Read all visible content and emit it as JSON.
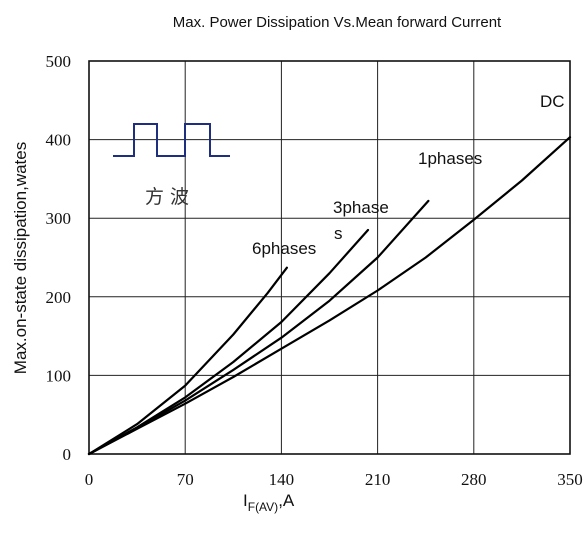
{
  "chart_data": {
    "type": "line",
    "title": "Max. Power Dissipation Vs.Mean forward Current",
    "ylabel": "Max.on-state dissipation,wates",
    "xlabel_main": "I",
    "xlabel_sub": "F(AV)",
    "xlabel_tail": ",A",
    "xlim": [
      0,
      350
    ],
    "ylim": [
      0,
      500
    ],
    "xticks": [
      0,
      70,
      140,
      210,
      280,
      350
    ],
    "yticks": [
      0,
      100,
      200,
      300,
      400,
      500
    ],
    "grid": true,
    "inset_caption": "方 波",
    "series": [
      {
        "name": "DC",
        "x": [
          0,
          35,
          70,
          105,
          140,
          175,
          210,
          245,
          280,
          315,
          350
        ],
        "y": [
          0,
          32,
          64,
          98,
          134,
          170,
          208,
          250,
          298,
          348,
          403
        ]
      },
      {
        "name": "1phases",
        "x": [
          0,
          35,
          70,
          105,
          140,
          175,
          210,
          247
        ],
        "y": [
          0,
          33,
          68,
          107,
          148,
          195,
          250,
          322
        ]
      },
      {
        "name": "3phase s",
        "x": [
          0,
          35,
          70,
          105,
          140,
          175,
          203
        ],
        "y": [
          0,
          34,
          72,
          117,
          168,
          230,
          285
        ]
      },
      {
        "name": "6phases",
        "x": [
          0,
          35,
          70,
          105,
          130,
          144
        ],
        "y": [
          0,
          38,
          87,
          152,
          205,
          237
        ]
      }
    ],
    "labels": {
      "dc": "DC",
      "p1": "1phases",
      "p3a": "3phase",
      "p3b": "s",
      "p6": "6phases"
    }
  }
}
